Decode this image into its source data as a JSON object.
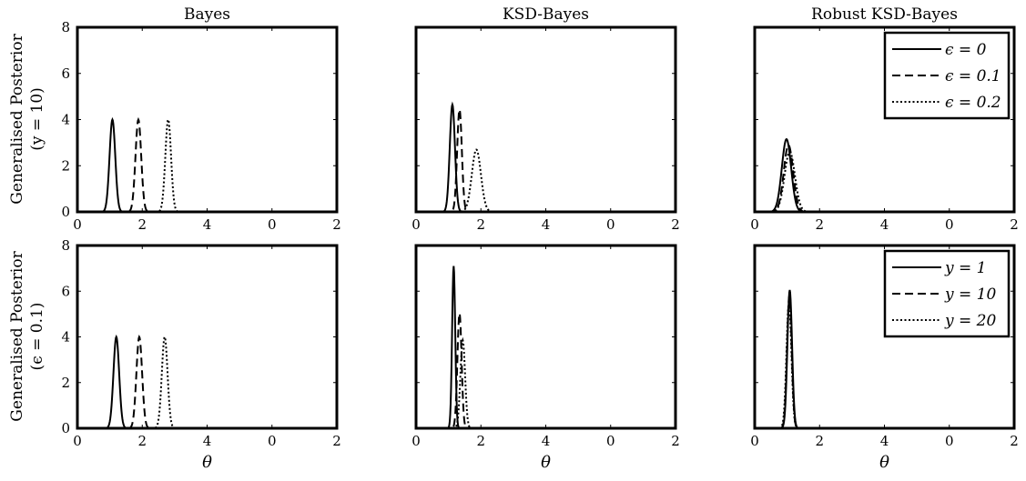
{
  "row_labels": [
    {
      "line1": "Generalised Posterior",
      "line2": "(y = 10)"
    },
    {
      "line1": "Generalised Posterior",
      "line2": "(ϵ = 0.1)"
    }
  ],
  "x_axis_symbol": "θ",
  "chart_data": [
    {
      "type": "line",
      "title": "Bayes",
      "xlabel": "θ",
      "ylabel": "",
      "xlim": [
        0,
        2
      ],
      "ylim": [
        0,
        8
      ],
      "xticklabels": [
        "0",
        "2",
        "4",
        "0",
        "2"
      ],
      "yticklabels": [
        "0",
        "2",
        "4",
        "6",
        "8"
      ],
      "grid": false,
      "legend": null,
      "series": [
        {
          "style": "solid",
          "center": 0.27,
          "sd": 0.022,
          "peak": 4.0
        },
        {
          "style": "dashed",
          "center": 0.47,
          "sd": 0.022,
          "peak": 4.0
        },
        {
          "style": "dotted",
          "center": 0.7,
          "sd": 0.022,
          "peak": 4.0
        }
      ]
    },
    {
      "type": "line",
      "title": "KSD-Bayes",
      "xlabel": "θ",
      "ylabel": "",
      "xlim": [
        0,
        2
      ],
      "ylim": [
        0,
        8
      ],
      "xticklabels": [
        "0",
        "2",
        "4",
        "0",
        "2"
      ],
      "yticklabels": [
        "",
        "",
        "",
        "",
        ""
      ],
      "grid": false,
      "legend": null,
      "series": [
        {
          "style": "solid",
          "center": 0.28,
          "sd": 0.02,
          "peak": 4.65
        },
        {
          "style": "dashed",
          "center": 0.335,
          "sd": 0.018,
          "peak": 4.45
        },
        {
          "style": "dotted",
          "center": 0.465,
          "sd": 0.035,
          "peak": 2.7
        }
      ]
    },
    {
      "type": "line",
      "title": "Robust KSD-Bayes",
      "xlabel": "θ",
      "ylabel": "",
      "xlim": [
        0,
        2
      ],
      "ylim": [
        0,
        8
      ],
      "xticklabels": [
        "0",
        "2",
        "4",
        "0",
        "2"
      ],
      "yticklabels": [
        "",
        "",
        "",
        "",
        ""
      ],
      "grid": false,
      "legend": "top-right",
      "series": [
        {
          "name": "ϵ = 0",
          "style": "solid",
          "center": 0.245,
          "sd": 0.036,
          "peak": 3.15
        },
        {
          "name": "ϵ = 0.1",
          "style": "dashed",
          "center": 0.26,
          "sd": 0.036,
          "peak": 2.9
        },
        {
          "name": "ϵ = 0.2",
          "style": "dotted",
          "center": 0.27,
          "sd": 0.04,
          "peak": 2.6
        }
      ]
    },
    {
      "type": "line",
      "title": "",
      "xlabel": "θ",
      "ylabel": "",
      "xlim": [
        0,
        2
      ],
      "ylim": [
        0,
        8
      ],
      "xticklabels": [
        "0",
        "2",
        "4",
        "0",
        "2"
      ],
      "yticklabels": [
        "0",
        "2",
        "4",
        "6",
        "8"
      ],
      "grid": false,
      "legend": null,
      "series": [
        {
          "style": "solid",
          "center": 0.3,
          "sd": 0.022,
          "peak": 4.0
        },
        {
          "style": "dashed",
          "center": 0.477,
          "sd": 0.022,
          "peak": 4.0
        },
        {
          "style": "dotted",
          "center": 0.673,
          "sd": 0.022,
          "peak": 4.0
        }
      ]
    },
    {
      "type": "line",
      "title": "",
      "xlabel": "θ",
      "ylabel": "",
      "xlim": [
        0,
        2
      ],
      "ylim": [
        0,
        8
      ],
      "xticklabels": [
        "0",
        "2",
        "4",
        "0",
        "2"
      ],
      "yticklabels": [
        "",
        "",
        "",
        "",
        ""
      ],
      "grid": false,
      "legend": null,
      "series": [
        {
          "style": "solid",
          "center": 0.29,
          "sd": 0.012,
          "peak": 7.1
        },
        {
          "style": "dashed",
          "center": 0.335,
          "sd": 0.016,
          "peak": 5.05
        },
        {
          "style": "dotted",
          "center": 0.36,
          "sd": 0.018,
          "peak": 3.85
        }
      ]
    },
    {
      "type": "line",
      "title": "",
      "xlabel": "θ",
      "ylabel": "",
      "xlim": [
        0,
        2
      ],
      "ylim": [
        0,
        8
      ],
      "xticklabels": [
        "0",
        "2",
        "4",
        "0",
        "2"
      ],
      "yticklabels": [
        "",
        "",
        "",
        "",
        ""
      ],
      "grid": false,
      "legend": "top-right",
      "series": [
        {
          "name": "y = 1",
          "style": "solid",
          "center": 0.27,
          "sd": 0.018,
          "peak": 6.05
        },
        {
          "name": "y = 10",
          "style": "dashed",
          "center": 0.267,
          "sd": 0.018,
          "peak": 5.8
        },
        {
          "name": "y = 20",
          "style": "dotted",
          "center": 0.264,
          "sd": 0.019,
          "peak": 5.5
        }
      ]
    }
  ]
}
